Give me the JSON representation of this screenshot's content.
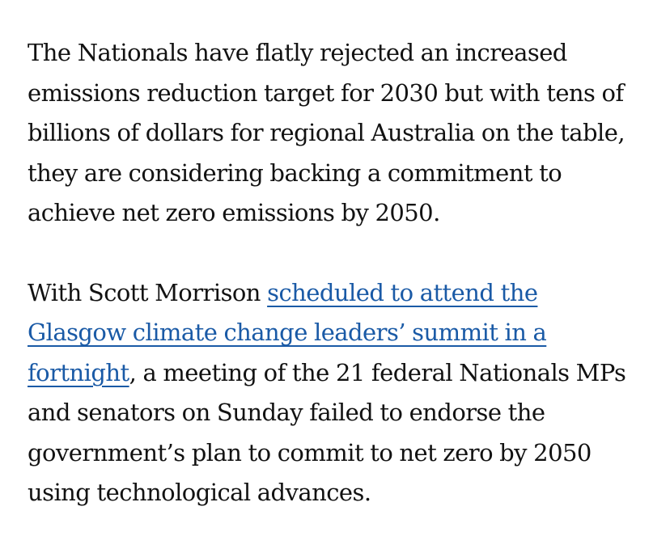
{
  "article": {
    "paragraph1": {
      "lines": [
        "The Nationals have flatly rejected an increased",
        "emissions reduction target for 2030 but with tens of",
        "billions of dollars for regional Australia on the table,",
        "they are considering backing a commitment to",
        "achieve net zero emissions by 2050."
      ]
    },
    "paragraph2": {
      "line1_text": "With Scott Morrison ",
      "link_line1": "scheduled to attend the",
      "link_line2": "Glasgow climate change leaders’ summit in a",
      "link_line3": "fortnight",
      "line3_rest": ", a meeting of the 21 federal Nationals MPs",
      "lines_after": [
        "and senators on Sunday failed to endorse the",
        "government’s plan to commit to net zero by 2050",
        "using technological advances."
      ]
    },
    "link_color": "#1a5aa6",
    "text_color": "#121212"
  }
}
